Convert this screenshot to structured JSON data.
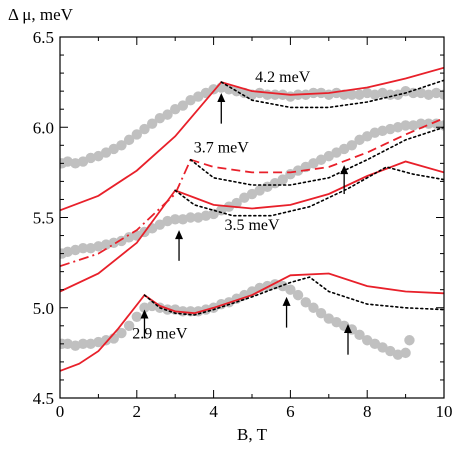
{
  "chart_data": {
    "type": "scatter",
    "title": "",
    "xlabel": "B, T",
    "ylabel": "Δ μ, meV",
    "xlim": [
      0,
      10
    ],
    "ylim": [
      4.5,
      6.5
    ],
    "xticks": [
      0,
      2,
      4,
      6,
      8,
      10
    ],
    "yticks": [
      4.5,
      5.0,
      5.5,
      6.0,
      6.5
    ],
    "ytick_labels": [
      "4.5",
      "5.0",
      "5.5",
      "6.0",
      "6.5"
    ],
    "grid": false,
    "legend": "none",
    "colors": {
      "data": "#c0c0c0",
      "model": "#e8202a",
      "dotted": "#000000"
    },
    "annotations": [
      {
        "text": "4.2 meV",
        "x": 5.8,
        "y": 6.25
      },
      {
        "text": "3.7 meV",
        "x": 4.2,
        "y": 5.86
      },
      {
        "text": "3.5 meV",
        "x": 5.0,
        "y": 5.43
      },
      {
        "text": "2.9 meV",
        "x": 2.6,
        "y": 4.83
      }
    ],
    "arrows": [
      {
        "x": 4.2,
        "y_tip": 6.19,
        "y_tail": 6.02
      },
      {
        "x": 7.4,
        "y_tip": 5.79,
        "y_tail": 5.63
      },
      {
        "x": 3.1,
        "y_tip": 5.43,
        "y_tail": 5.26
      },
      {
        "x": 2.2,
        "y_tip": 4.99,
        "y_tail": 4.83
      },
      {
        "x": 5.9,
        "y_tip": 5.06,
        "y_tail": 4.89
      },
      {
        "x": 7.5,
        "y_tip": 4.91,
        "y_tail": 4.74
      }
    ],
    "series": [
      {
        "style": "scatter",
        "color": "#c0c0c0",
        "points": [
          [
            0.05,
            5.8
          ],
          [
            0.2,
            5.81
          ],
          [
            0.4,
            5.8
          ],
          [
            0.6,
            5.81
          ],
          [
            0.8,
            5.83
          ],
          [
            1.0,
            5.84
          ],
          [
            1.2,
            5.86
          ],
          [
            1.4,
            5.88
          ],
          [
            1.6,
            5.9
          ],
          [
            1.8,
            5.93
          ],
          [
            2.0,
            5.96
          ],
          [
            2.2,
            5.99
          ],
          [
            2.4,
            6.02
          ],
          [
            2.6,
            6.05
          ],
          [
            2.8,
            6.07
          ],
          [
            3.0,
            6.1
          ],
          [
            3.2,
            6.12
          ],
          [
            3.4,
            6.15
          ],
          [
            3.6,
            6.17
          ],
          [
            3.8,
            6.19
          ],
          [
            4.0,
            6.21
          ],
          [
            4.2,
            6.22
          ],
          [
            4.4,
            6.21
          ],
          [
            4.6,
            6.2
          ],
          [
            4.8,
            6.19
          ],
          [
            5.0,
            6.18
          ],
          [
            5.2,
            6.19
          ],
          [
            5.4,
            6.18
          ],
          [
            5.6,
            6.18
          ],
          [
            5.8,
            6.18
          ],
          [
            6.0,
            6.17
          ],
          [
            6.2,
            6.18
          ],
          [
            6.4,
            6.18
          ],
          [
            6.6,
            6.19
          ],
          [
            6.8,
            6.19
          ],
          [
            7.0,
            6.18
          ],
          [
            7.2,
            6.19
          ],
          [
            7.4,
            6.18
          ],
          [
            7.6,
            6.18
          ],
          [
            7.8,
            6.18
          ],
          [
            8.0,
            6.19
          ],
          [
            8.2,
            6.18
          ],
          [
            8.4,
            6.19
          ],
          [
            8.6,
            6.18
          ],
          [
            8.8,
            6.18
          ],
          [
            9.0,
            6.2
          ],
          [
            9.2,
            6.19
          ],
          [
            9.4,
            6.19
          ],
          [
            9.6,
            6.18
          ],
          [
            9.8,
            6.19
          ],
          [
            10.0,
            6.18
          ]
        ]
      },
      {
        "style": "scatter",
        "color": "#c0c0c0",
        "points": [
          [
            0.05,
            5.3
          ],
          [
            0.2,
            5.31
          ],
          [
            0.4,
            5.32
          ],
          [
            0.6,
            5.33
          ],
          [
            0.8,
            5.33
          ],
          [
            1.0,
            5.34
          ],
          [
            1.2,
            5.35
          ],
          [
            1.4,
            5.36
          ],
          [
            1.6,
            5.37
          ],
          [
            1.8,
            5.39
          ],
          [
            2.0,
            5.4
          ],
          [
            2.2,
            5.42
          ],
          [
            2.4,
            5.44
          ],
          [
            2.6,
            5.46
          ],
          [
            2.8,
            5.48
          ],
          [
            3.0,
            5.49
          ],
          [
            3.2,
            5.49
          ],
          [
            3.4,
            5.5
          ],
          [
            3.6,
            5.5
          ],
          [
            3.8,
            5.51
          ],
          [
            4.0,
            5.52
          ],
          [
            4.2,
            5.54
          ],
          [
            4.4,
            5.56
          ],
          [
            4.6,
            5.58
          ],
          [
            4.8,
            5.61
          ],
          [
            5.0,
            5.63
          ],
          [
            5.2,
            5.65
          ],
          [
            5.4,
            5.67
          ],
          [
            5.6,
            5.69
          ],
          [
            5.8,
            5.71
          ],
          [
            6.0,
            5.74
          ],
          [
            6.2,
            5.76
          ],
          [
            6.4,
            5.78
          ],
          [
            6.6,
            5.8
          ],
          [
            6.8,
            5.82
          ],
          [
            7.0,
            5.84
          ],
          [
            7.2,
            5.86
          ],
          [
            7.4,
            5.88
          ],
          [
            7.6,
            5.9
          ],
          [
            7.8,
            5.93
          ],
          [
            8.0,
            5.95
          ],
          [
            8.2,
            5.97
          ],
          [
            8.4,
            5.98
          ],
          [
            8.6,
            5.99
          ],
          [
            8.8,
            6.0
          ],
          [
            9.0,
            6.01
          ],
          [
            9.2,
            6.01
          ],
          [
            9.4,
            6.02
          ],
          [
            9.6,
            6.02
          ],
          [
            9.8,
            6.02
          ],
          [
            10.0,
            6.01
          ]
        ]
      },
      {
        "style": "scatter",
        "color": "#c0c0c0",
        "points": [
          [
            0.05,
            4.8
          ],
          [
            0.2,
            4.8
          ],
          [
            0.4,
            4.79
          ],
          [
            0.6,
            4.8
          ],
          [
            0.8,
            4.8
          ],
          [
            1.0,
            4.81
          ],
          [
            1.2,
            4.82
          ],
          [
            1.4,
            4.83
          ],
          [
            1.6,
            4.86
          ],
          [
            1.8,
            4.9
          ],
          [
            2.0,
            4.95
          ],
          [
            2.2,
            5.0
          ],
          [
            2.4,
            5.01
          ],
          [
            2.6,
            5.0
          ],
          [
            2.8,
            4.99
          ],
          [
            3.0,
            4.99
          ],
          [
            3.2,
            4.98
          ],
          [
            3.4,
            4.98
          ],
          [
            3.6,
            4.98
          ],
          [
            3.8,
            4.99
          ],
          [
            4.0,
            5.0
          ],
          [
            4.2,
            5.02
          ],
          [
            4.4,
            5.03
          ],
          [
            4.6,
            5.05
          ],
          [
            4.8,
            5.07
          ],
          [
            5.0,
            5.09
          ],
          [
            5.2,
            5.11
          ],
          [
            5.4,
            5.12
          ],
          [
            5.6,
            5.13
          ],
          [
            5.8,
            5.12
          ],
          [
            6.0,
            5.1
          ],
          [
            6.2,
            5.07
          ],
          [
            6.4,
            5.03
          ],
          [
            6.6,
            5.0
          ],
          [
            6.8,
            4.97
          ],
          [
            7.0,
            4.94
          ],
          [
            7.2,
            4.92
          ],
          [
            7.4,
            4.9
          ],
          [
            7.6,
            4.88
          ],
          [
            7.8,
            4.85
          ],
          [
            8.0,
            4.82
          ],
          [
            8.2,
            4.8
          ],
          [
            8.4,
            4.78
          ],
          [
            8.6,
            4.76
          ],
          [
            8.8,
            4.74
          ],
          [
            9.0,
            4.75
          ],
          [
            9.1,
            4.82
          ]
        ]
      },
      {
        "style": "solid",
        "color": "#e8202a",
        "points": [
          [
            0,
            5.54
          ],
          [
            1,
            5.62
          ],
          [
            2,
            5.76
          ],
          [
            3,
            5.95
          ],
          [
            4.2,
            6.25
          ],
          [
            5.0,
            6.2
          ],
          [
            5.5,
            6.19
          ],
          [
            6.0,
            6.18
          ],
          [
            7.0,
            6.19
          ],
          [
            8.0,
            6.22
          ],
          [
            9.0,
            6.27
          ],
          [
            10.0,
            6.33
          ]
        ]
      },
      {
        "style": "dotted",
        "color": "#000000",
        "points": [
          [
            4.2,
            6.25
          ],
          [
            5.0,
            6.15
          ],
          [
            6.0,
            6.11
          ],
          [
            7.0,
            6.11
          ],
          [
            8.0,
            6.14
          ],
          [
            9.0,
            6.19
          ],
          [
            10.0,
            6.26
          ]
        ]
      },
      {
        "style": "dashdot",
        "color": "#e8202a",
        "points": [
          [
            0,
            5.23
          ],
          [
            1,
            5.3
          ],
          [
            2,
            5.43
          ],
          [
            3,
            5.63
          ],
          [
            3.4,
            5.82
          ]
        ]
      },
      {
        "style": "dashed",
        "color": "#e8202a",
        "points": [
          [
            3.4,
            5.82
          ],
          [
            4.0,
            5.78
          ],
          [
            5.0,
            5.75
          ],
          [
            6.0,
            5.75
          ],
          [
            7.0,
            5.78
          ],
          [
            8.0,
            5.86
          ],
          [
            9.0,
            5.96
          ],
          [
            10.0,
            6.05
          ]
        ]
      },
      {
        "style": "dotted",
        "color": "#000000",
        "points": [
          [
            3.4,
            5.82
          ],
          [
            4.0,
            5.72
          ],
          [
            5.0,
            5.68
          ],
          [
            6.0,
            5.68
          ],
          [
            7.0,
            5.72
          ],
          [
            8.0,
            5.82
          ],
          [
            9.0,
            5.93
          ],
          [
            10.0,
            6.0
          ]
        ]
      },
      {
        "style": "solid",
        "color": "#e8202a",
        "points": [
          [
            0,
            5.09
          ],
          [
            1,
            5.19
          ],
          [
            2,
            5.36
          ],
          [
            3.0,
            5.65
          ],
          [
            3.5,
            5.61
          ],
          [
            4.0,
            5.57
          ],
          [
            5.0,
            5.55
          ],
          [
            6.0,
            5.57
          ],
          [
            7.0,
            5.63
          ],
          [
            8.0,
            5.73
          ],
          [
            9.0,
            5.81
          ],
          [
            10.0,
            5.75
          ]
        ]
      },
      {
        "style": "dotted",
        "color": "#000000",
        "points": [
          [
            3.0,
            5.65
          ],
          [
            3.5,
            5.57
          ],
          [
            4.5,
            5.51
          ],
          [
            5.5,
            5.51
          ],
          [
            6.5,
            5.56
          ],
          [
            7.5,
            5.66
          ],
          [
            8.5,
            5.78
          ],
          [
            9.2,
            5.74
          ],
          [
            10.0,
            5.71
          ]
        ]
      },
      {
        "style": "solid",
        "color": "#e8202a",
        "points": [
          [
            0,
            4.65
          ],
          [
            0.5,
            4.69
          ],
          [
            1.0,
            4.76
          ],
          [
            1.5,
            4.88
          ],
          [
            2.2,
            5.07
          ],
          [
            2.6,
            5.01
          ],
          [
            3.0,
            4.98
          ],
          [
            3.5,
            4.97
          ],
          [
            4.0,
            5.0
          ],
          [
            5.0,
            5.07
          ],
          [
            6.0,
            5.18
          ],
          [
            7.0,
            5.19
          ],
          [
            8.0,
            5.12
          ],
          [
            9.0,
            5.09
          ],
          [
            10.0,
            5.08
          ]
        ]
      },
      {
        "style": "dotted",
        "color": "#000000",
        "points": [
          [
            2.2,
            5.07
          ],
          [
            2.6,
            5.0
          ],
          [
            3.0,
            4.97
          ],
          [
            3.5,
            4.96
          ],
          [
            4.0,
            4.99
          ],
          [
            5.0,
            5.06
          ],
          [
            6.0,
            5.14
          ],
          [
            6.5,
            5.17
          ],
          [
            7.0,
            5.09
          ],
          [
            8.0,
            5.02
          ],
          [
            9.0,
            5.0
          ],
          [
            10.0,
            4.99
          ]
        ]
      }
    ]
  }
}
